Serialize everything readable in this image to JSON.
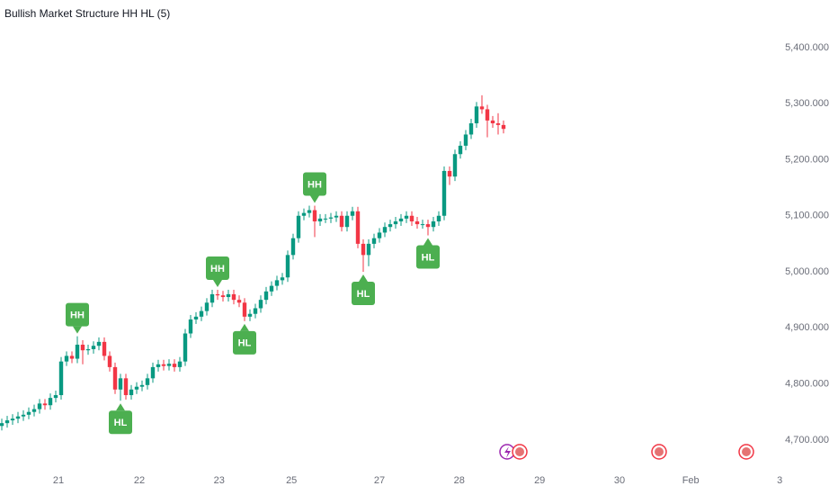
{
  "chart_data": {
    "type": "candlestick",
    "title": "Bullish Market Structure HH HL (5)",
    "up_color": "#089981",
    "down_color": "#f23645",
    "marker_color": "#4caf50",
    "open": [
      4725,
      4730,
      4735,
      4738,
      4742,
      4745,
      4750,
      4755,
      4765,
      4762,
      4775,
      4780,
      4840,
      4850,
      4845,
      4870,
      4860,
      4862,
      4868,
      4875,
      4850,
      4830,
      4790,
      4810,
      4780,
      4790,
      4795,
      4798,
      4810,
      4830,
      4835,
      4832,
      4836,
      4830,
      4840,
      4890,
      4915,
      4920,
      4930,
      4945,
      4960,
      4958,
      4955,
      4960,
      4950,
      4945,
      4920,
      4925,
      4935,
      4950,
      4965,
      4975,
      4985,
      4990,
      5030,
      5060,
      5100,
      5105,
      5110,
      5090,
      5095,
      5095,
      5097,
      5100,
      5080,
      5100,
      5108,
      5050,
      5030,
      5050,
      5060,
      5070,
      5080,
      5085,
      5090,
      5095,
      5100,
      5090,
      5085,
      5085,
      5080,
      5090,
      5100,
      5180,
      5170,
      5210,
      5225,
      5245,
      5265,
      5295,
      5290,
      5270,
      5265,
      5262
    ],
    "high": [
      4738,
      4743,
      4746,
      4750,
      4753,
      4758,
      4763,
      4773,
      4773,
      4783,
      4788,
      4848,
      4858,
      4858,
      4885,
      4878,
      4870,
      4876,
      4883,
      4883,
      4858,
      4838,
      4818,
      4818,
      4798,
      4803,
      4806,
      4818,
      4838,
      4843,
      4843,
      4844,
      4844,
      4848,
      4898,
      4923,
      4928,
      4938,
      4953,
      4968,
      4968,
      4966,
      4968,
      4968,
      4958,
      4953,
      4933,
      4943,
      4958,
      4973,
      4983,
      4993,
      4998,
      5038,
      5068,
      5108,
      5113,
      5118,
      5118,
      5103,
      5103,
      5105,
      5108,
      5108,
      5108,
      5116,
      5116,
      5058,
      5058,
      5068,
      5078,
      5088,
      5093,
      5098,
      5103,
      5108,
      5108,
      5098,
      5093,
      5093,
      5098,
      5108,
      5188,
      5188,
      5218,
      5233,
      5253,
      5273,
      5303,
      5315,
      5298,
      5278,
      5283,
      5270
    ],
    "low": [
      4717,
      4722,
      4727,
      4730,
      4734,
      4737,
      4742,
      4747,
      4754,
      4754,
      4767,
      4772,
      4832,
      4837,
      4837,
      4835,
      4852,
      4854,
      4860,
      4842,
      4822,
      4782,
      4770,
      4772,
      4772,
      4782,
      4787,
      4790,
      4802,
      4822,
      4824,
      4824,
      4822,
      4822,
      4832,
      4882,
      4907,
      4912,
      4922,
      4937,
      4950,
      4947,
      4947,
      4942,
      4937,
      4912,
      4912,
      4917,
      4927,
      4942,
      4957,
      4967,
      4977,
      4982,
      5022,
      5052,
      5092,
      5097,
      5062,
      5082,
      5087,
      5087,
      5089,
      5072,
      5072,
      5092,
      5042,
      5000,
      5010,
      5042,
      5052,
      5062,
      5072,
      5077,
      5082,
      5087,
      5082,
      5077,
      5077,
      5065,
      5072,
      5082,
      5092,
      5155,
      5162,
      5202,
      5217,
      5237,
      5257,
      5282,
      5240,
      5257,
      5245,
      5247
    ],
    "close": [
      4730,
      4735,
      4738,
      4742,
      4745,
      4750,
      4755,
      4765,
      4762,
      4775,
      4780,
      4840,
      4850,
      4845,
      4870,
      4860,
      4862,
      4868,
      4875,
      4850,
      4830,
      4790,
      4810,
      4780,
      4790,
      4795,
      4798,
      4810,
      4830,
      4835,
      4832,
      4836,
      4830,
      4840,
      4890,
      4915,
      4920,
      4930,
      4945,
      4960,
      4958,
      4955,
      4960,
      4950,
      4945,
      4920,
      4925,
      4935,
      4950,
      4965,
      4975,
      4985,
      4990,
      5030,
      5060,
      5100,
      5105,
      5110,
      5090,
      5095,
      5095,
      5097,
      5100,
      5080,
      5100,
      5108,
      5050,
      5030,
      5050,
      5060,
      5070,
      5080,
      5085,
      5090,
      5095,
      5100,
      5090,
      5085,
      5085,
      5080,
      5090,
      5100,
      5180,
      5170,
      5210,
      5225,
      5245,
      5265,
      5295,
      5290,
      5270,
      5265,
      5262,
      5255
    ],
    "markers": [
      {
        "x": 14,
        "label": "HH",
        "position": "above"
      },
      {
        "x": 22,
        "label": "HL",
        "position": "below"
      },
      {
        "x": 40,
        "label": "HH",
        "position": "above"
      },
      {
        "x": 45,
        "label": "HL",
        "position": "below"
      },
      {
        "x": 58,
        "label": "HH",
        "position": "above"
      },
      {
        "x": 67,
        "label": "HL",
        "position": "below"
      },
      {
        "x": 79,
        "label": "HL",
        "position": "below"
      }
    ],
    "xlim": [
      -0.333,
      155
    ],
    "xticks": [
      {
        "value": 10.5,
        "label": "21"
      },
      {
        "value": 25.5,
        "label": "22"
      },
      {
        "value": 40.3,
        "label": "23"
      },
      {
        "value": 53.7,
        "label": "25"
      },
      {
        "value": 70,
        "label": "27"
      },
      {
        "value": 84.8,
        "label": "28"
      },
      {
        "value": 99.7,
        "label": "29"
      },
      {
        "value": 114.5,
        "label": "30"
      },
      {
        "value": 127.7,
        "label": "Feb"
      },
      {
        "value": 144.2,
        "label": "3"
      }
    ],
    "ylim": [
      4658,
      5485
    ],
    "yticks": [
      {
        "value": 4700,
        "label": "4,700.000"
      },
      {
        "value": 4800,
        "label": "4,800.000"
      },
      {
        "value": 4900,
        "label": "4,900.000"
      },
      {
        "value": 5000,
        "label": "5,000.000"
      },
      {
        "value": 5100,
        "label": "5,100.000"
      },
      {
        "value": 5200,
        "label": "5,200.000"
      },
      {
        "value": 5300,
        "label": "5,300.000"
      },
      {
        "value": 5400,
        "label": "5,400.000"
      }
    ]
  }
}
